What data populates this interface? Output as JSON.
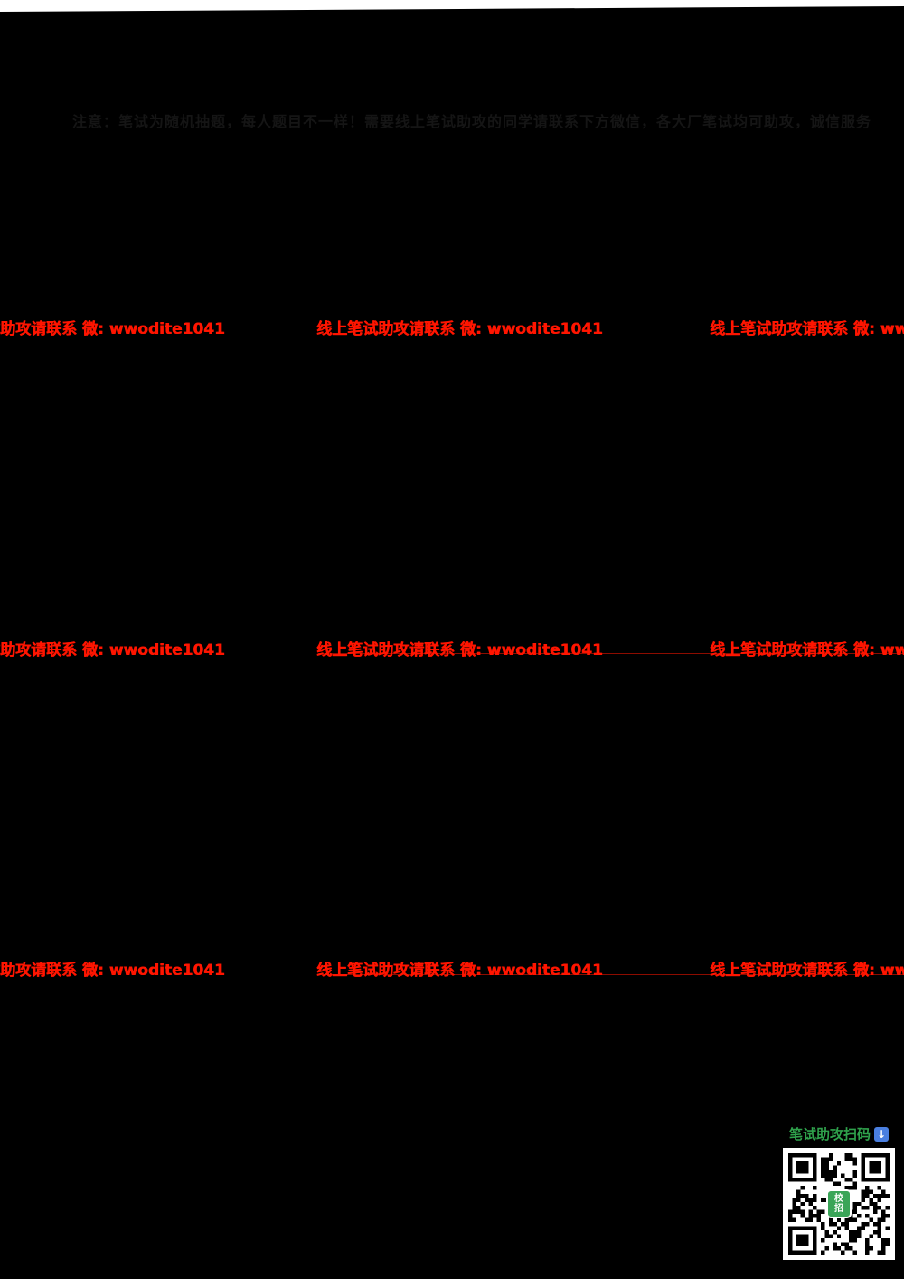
{
  "page": {
    "header_note": "注意：笔试为随机抽题，每人题目不一样！需要线上笔试助攻的同学请联系下方微信，各大厂笔试均可助攻，诚信服务",
    "watermark_text": "线上笔试助攻请联系 微: wwodite1041",
    "qr": {
      "label": "笔试助攻扫码",
      "center_logo": "校招"
    },
    "colors": {
      "page_bg": "#000000",
      "watermark_red": "#ff1500",
      "qr_label_green": "#2fa24c",
      "arrow_blue": "#4a7fe0",
      "logo_green": "#3aa558"
    }
  }
}
